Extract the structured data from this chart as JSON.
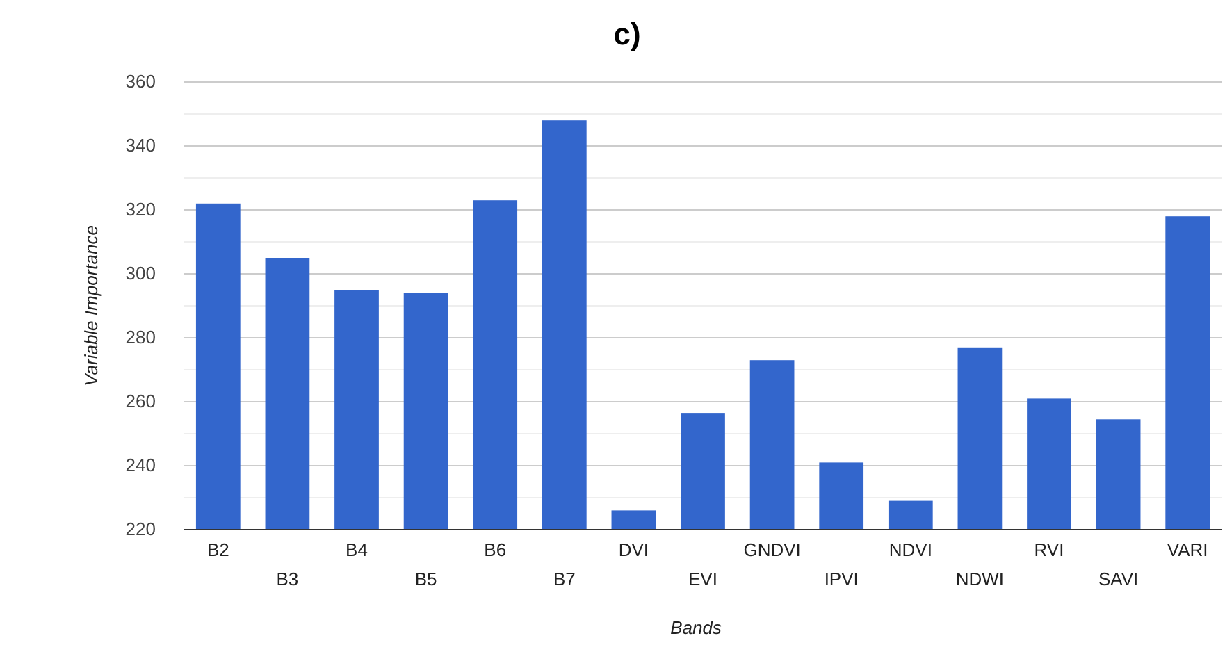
{
  "chart_data": {
    "type": "bar",
    "title": "c)",
    "xlabel": "Bands",
    "ylabel": "Variable Importance",
    "categories": [
      "B2",
      "B3",
      "B4",
      "B5",
      "B6",
      "B7",
      "DVI",
      "EVI",
      "GNDVI",
      "IPVI",
      "NDVI",
      "NDWI",
      "RVI",
      "SAVI",
      "VARI"
    ],
    "values": [
      322,
      305,
      295,
      294,
      323,
      348,
      226,
      256.5,
      273,
      241,
      229,
      277,
      261,
      254.5,
      318
    ],
    "color": "#3366cc",
    "ylim": [
      220,
      360
    ],
    "yticks": [
      220,
      {
        "value": 230,
        "label": null
      },
      240,
      {
        "value": 250,
        "label": null
      },
      260,
      {
        "value": 270,
        "label": null
      },
      280,
      {
        "value": 290,
        "label": null
      },
      300,
      {
        "value": 310,
        "label": null
      },
      320,
      {
        "value": 330,
        "label": null
      },
      340,
      {
        "value": 350,
        "label": null
      },
      360
    ],
    "grid": "y"
  }
}
